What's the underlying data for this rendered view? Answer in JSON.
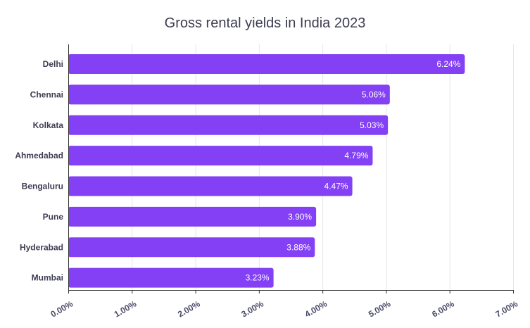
{
  "chart_data": {
    "type": "bar",
    "orientation": "horizontal",
    "title": "Gross rental yields in India 2023",
    "xlabel": "",
    "ylabel": "",
    "categories": [
      "Delhi",
      "Chennai",
      "Kolkata",
      "Ahmedabad",
      "Bengaluru",
      "Pune",
      "Hyderabad",
      "Mumbai"
    ],
    "values": [
      6.24,
      5.06,
      5.03,
      4.79,
      4.47,
      3.9,
      3.88,
      3.23
    ],
    "value_labels": [
      "6.24%",
      "5.06%",
      "5.03%",
      "4.79%",
      "4.47%",
      "3.90%",
      "3.88%",
      "3.23%"
    ],
    "xlim": [
      0,
      7
    ],
    "x_ticks": [
      0,
      1,
      2,
      3,
      4,
      5,
      6,
      7
    ],
    "x_tick_labels": [
      "0.00%",
      "1.00%",
      "2.00%",
      "3.00%",
      "4.00%",
      "5.00%",
      "6.00%",
      "7.00%"
    ],
    "grid": true,
    "legend": "none",
    "bar_color": "#8340f5",
    "value_label_color": "#ffffff",
    "axis_color": "#333333",
    "grid_color": "#e6e6e6",
    "tick_label_color": "#4a4a68"
  }
}
